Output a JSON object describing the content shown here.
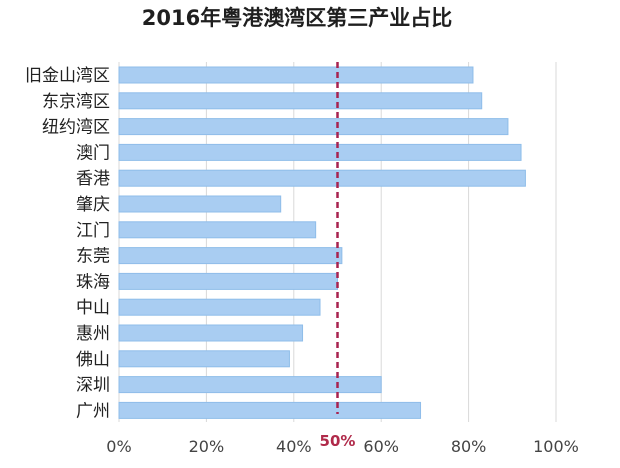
{
  "chart_data": {
    "type": "bar",
    "orientation": "horizontal",
    "title": "2016年粤港澳湾区第三产业占比",
    "categories": [
      "旧金山湾区",
      "东京湾区",
      "纽约湾区",
      "澳门",
      "香港",
      "肇庆",
      "江门",
      "东莞",
      "珠海",
      "中山",
      "惠州",
      "佛山",
      "深圳",
      "广州"
    ],
    "values": [
      81,
      83,
      89,
      92,
      93,
      37,
      45,
      51,
      50,
      46,
      42,
      39,
      60,
      69
    ],
    "xlim": [
      0,
      100
    ],
    "x_ticks": [
      "0%",
      "20%",
      "40%",
      "60%",
      "80%",
      "100%"
    ],
    "reference_line": {
      "value": 50,
      "label": "50%",
      "style": "dashed"
    },
    "grid": true,
    "legend": "none",
    "colors": {
      "bar_fill": "#a9cdf2",
      "bar_stroke": "#8fbde9",
      "reference_line": "#a8224f",
      "grid": "#d9d9d9"
    }
  }
}
